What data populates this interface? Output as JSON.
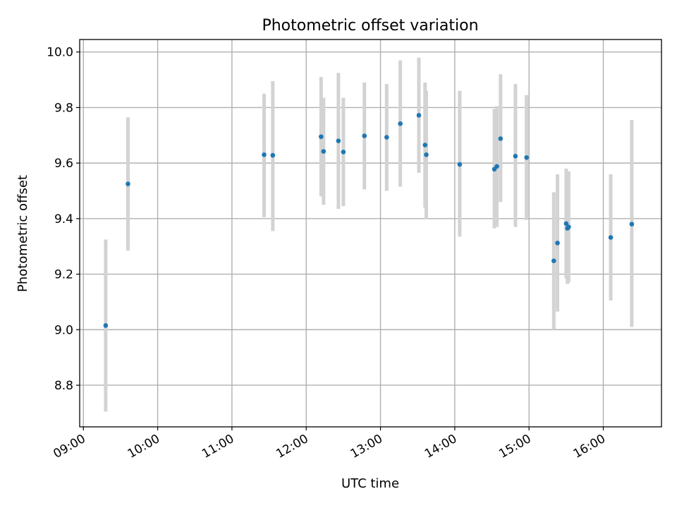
{
  "chart_data": {
    "type": "scatter",
    "title": "Photometric offset variation",
    "xlabel": "UTC time",
    "ylabel": "Photometric offset",
    "x_axis": {
      "kind": "time",
      "range": [
        "08:57",
        "16:47"
      ],
      "ticks": [
        "09:00",
        "10:00",
        "11:00",
        "12:00",
        "13:00",
        "14:00",
        "15:00",
        "16:00"
      ]
    },
    "y_axis": {
      "range": [
        8.65,
        10.045
      ],
      "ticks": [
        8.8,
        9.0,
        9.2,
        9.4,
        9.6,
        9.8,
        10.0
      ],
      "tick_labels": [
        "8.8",
        "9.0",
        "9.2",
        "9.4",
        "9.6",
        "9.8",
        "10.0"
      ]
    },
    "grid": true,
    "colors": {
      "points": "#1f77b4",
      "errorbars": "#d3d3d3"
    },
    "series": [
      {
        "marker": "point",
        "points": [
          {
            "x": "09:18",
            "y": 9.015,
            "lo": 8.705,
            "hi": 9.325
          },
          {
            "x": "09:36",
            "y": 9.525,
            "lo": 9.285,
            "hi": 9.765
          },
          {
            "x": "11:26",
            "y": 9.63,
            "lo": 9.405,
            "hi": 9.85
          },
          {
            "x": "11:33",
            "y": 9.628,
            "lo": 9.355,
            "hi": 9.895
          },
          {
            "x": "12:12",
            "y": 9.695,
            "lo": 9.48,
            "hi": 9.91
          },
          {
            "x": "12:14",
            "y": 9.642,
            "lo": 9.45,
            "hi": 9.835
          },
          {
            "x": "12:26",
            "y": 9.68,
            "lo": 9.435,
            "hi": 9.925
          },
          {
            "x": "12:30",
            "y": 9.64,
            "lo": 9.445,
            "hi": 9.835
          },
          {
            "x": "12:47",
            "y": 9.698,
            "lo": 9.505,
            "hi": 9.89
          },
          {
            "x": "13:05",
            "y": 9.693,
            "lo": 9.5,
            "hi": 9.885
          },
          {
            "x": "13:16",
            "y": 9.742,
            "lo": 9.515,
            "hi": 9.97
          },
          {
            "x": "13:31",
            "y": 9.772,
            "lo": 9.565,
            "hi": 9.98
          },
          {
            "x": "13:36",
            "y": 9.665,
            "lo": 9.44,
            "hi": 9.89
          },
          {
            "x": "13:37",
            "y": 9.63,
            "lo": 9.4,
            "hi": 9.86
          },
          {
            "x": "14:04",
            "y": 9.595,
            "lo": 9.335,
            "hi": 9.86
          },
          {
            "x": "14:32",
            "y": 9.578,
            "lo": 9.365,
            "hi": 9.795
          },
          {
            "x": "14:34",
            "y": 9.588,
            "lo": 9.37,
            "hi": 9.805
          },
          {
            "x": "14:37",
            "y": 9.688,
            "lo": 9.46,
            "hi": 9.92
          },
          {
            "x": "14:49",
            "y": 9.625,
            "lo": 9.37,
            "hi": 9.885
          },
          {
            "x": "14:58",
            "y": 9.62,
            "lo": 9.395,
            "hi": 9.845
          },
          {
            "x": "15:20",
            "y": 9.248,
            "lo": 9.0,
            "hi": 9.495
          },
          {
            "x": "15:23",
            "y": 9.312,
            "lo": 9.065,
            "hi": 9.56
          },
          {
            "x": "15:30",
            "y": 9.382,
            "lo": 9.185,
            "hi": 9.58
          },
          {
            "x": "15:31",
            "y": 9.365,
            "lo": 9.165,
            "hi": 9.565
          },
          {
            "x": "15:32",
            "y": 9.37,
            "lo": 9.17,
            "hi": 9.57
          },
          {
            "x": "16:06",
            "y": 9.332,
            "lo": 9.105,
            "hi": 9.56
          },
          {
            "x": "16:23",
            "y": 9.38,
            "lo": 9.01,
            "hi": 9.755
          }
        ]
      }
    ]
  }
}
